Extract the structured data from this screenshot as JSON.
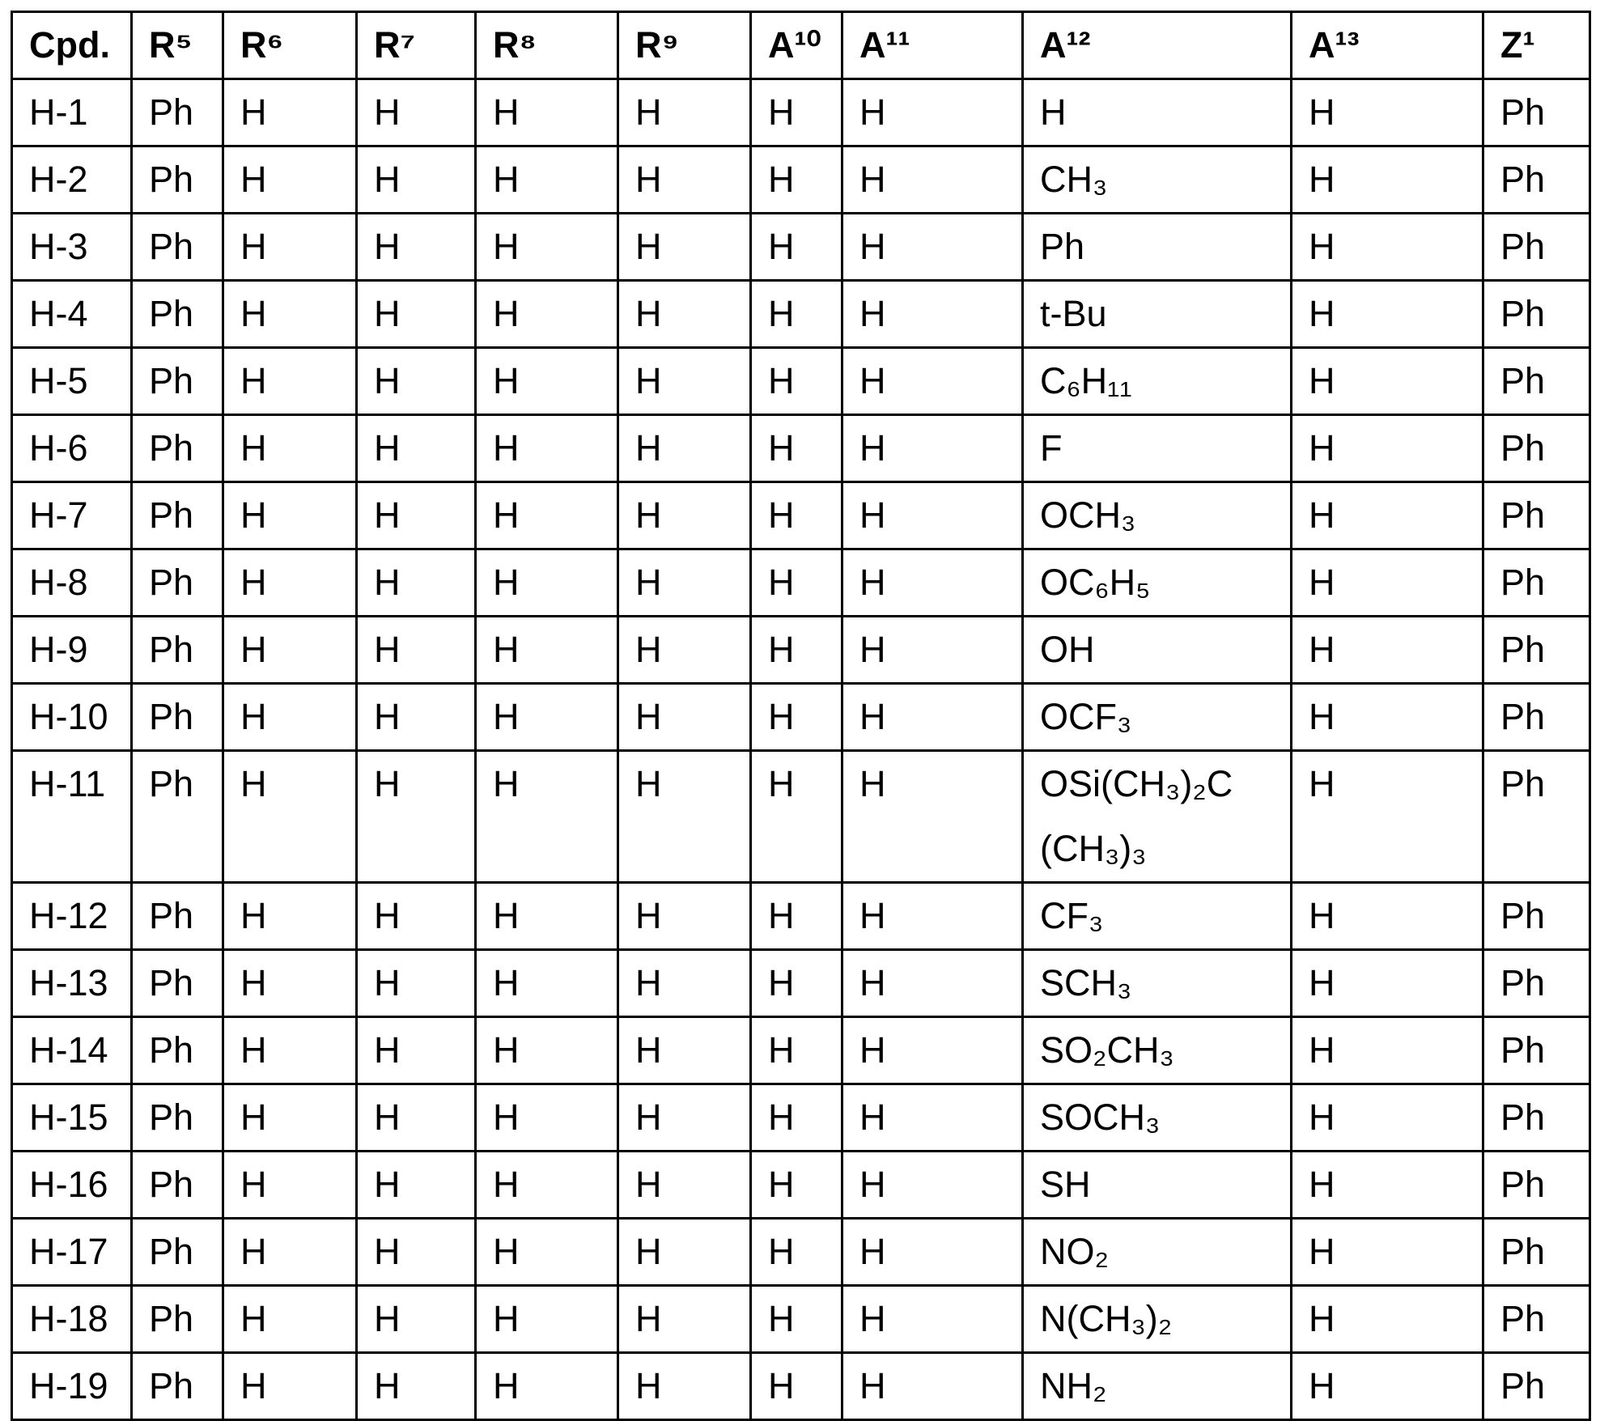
{
  "table": {
    "headers": [
      "Cpd.",
      "R⁵",
      "R⁶",
      "R⁷",
      "R⁸",
      "R⁹",
      "A¹⁰",
      "A¹¹",
      "A¹²",
      "A¹³",
      "Z¹"
    ],
    "rows": [
      [
        "H-1",
        "Ph",
        "H",
        "H",
        "H",
        "H",
        "H",
        "H",
        "H",
        "H",
        "Ph"
      ],
      [
        "H-2",
        "Ph",
        "H",
        "H",
        "H",
        "H",
        "H",
        "H",
        "CH₃",
        "H",
        "Ph"
      ],
      [
        "H-3",
        "Ph",
        "H",
        "H",
        "H",
        "H",
        "H",
        "H",
        "Ph",
        "H",
        "Ph"
      ],
      [
        "H-4",
        "Ph",
        "H",
        "H",
        "H",
        "H",
        "H",
        "H",
        "t-Bu",
        "H",
        "Ph"
      ],
      [
        "H-5",
        "Ph",
        "H",
        "H",
        "H",
        "H",
        "H",
        "H",
        "C₆H₁₁",
        "H",
        "Ph"
      ],
      [
        "H-6",
        "Ph",
        "H",
        "H",
        "H",
        "H",
        "H",
        "H",
        "F",
        "H",
        "Ph"
      ],
      [
        "H-7",
        "Ph",
        "H",
        "H",
        "H",
        "H",
        "H",
        "H",
        "OCH₃",
        "H",
        "Ph"
      ],
      [
        "H-8",
        "Ph",
        "H",
        "H",
        "H",
        "H",
        "H",
        "H",
        "OC₆H₅",
        "H",
        "Ph"
      ],
      [
        "H-9",
        "Ph",
        "H",
        "H",
        "H",
        "H",
        "H",
        "H",
        "OH",
        "H",
        "Ph"
      ],
      [
        "H-10",
        "Ph",
        "H",
        "H",
        "H",
        "H",
        "H",
        "H",
        "OCF₃",
        "H",
        "Ph"
      ],
      [
        "H-11",
        "Ph",
        "H",
        "H",
        "H",
        "H",
        "H",
        "H",
        "OSi(CH₃)₂C (CH₃)₃",
        "H",
        "Ph"
      ],
      [
        "H-12",
        "Ph",
        "H",
        "H",
        "H",
        "H",
        "H",
        "H",
        "CF₃",
        "H",
        "Ph"
      ],
      [
        "H-13",
        "Ph",
        "H",
        "H",
        "H",
        "H",
        "H",
        "H",
        "SCH₃",
        "H",
        "Ph"
      ],
      [
        "H-14",
        "Ph",
        "H",
        "H",
        "H",
        "H",
        "H",
        "H",
        "SO₂CH₃",
        "H",
        "Ph"
      ],
      [
        "H-15",
        "Ph",
        "H",
        "H",
        "H",
        "H",
        "H",
        "H",
        "SOCH₃",
        "H",
        "Ph"
      ],
      [
        "H-16",
        "Ph",
        "H",
        "H",
        "H",
        "H",
        "H",
        "H",
        "SH",
        "H",
        "Ph"
      ],
      [
        "H-17",
        "Ph",
        "H",
        "H",
        "H",
        "H",
        "H",
        "H",
        "NO₂",
        "H",
        "Ph"
      ],
      [
        "H-18",
        "Ph",
        "H",
        "H",
        "H",
        "H",
        "H",
        "H",
        "N(CH₃)₂",
        "H",
        "Ph"
      ],
      [
        "H-19",
        "Ph",
        "H",
        "H",
        "H",
        "H",
        "H",
        "H",
        "NH₂",
        "H",
        "Ph"
      ]
    ]
  }
}
